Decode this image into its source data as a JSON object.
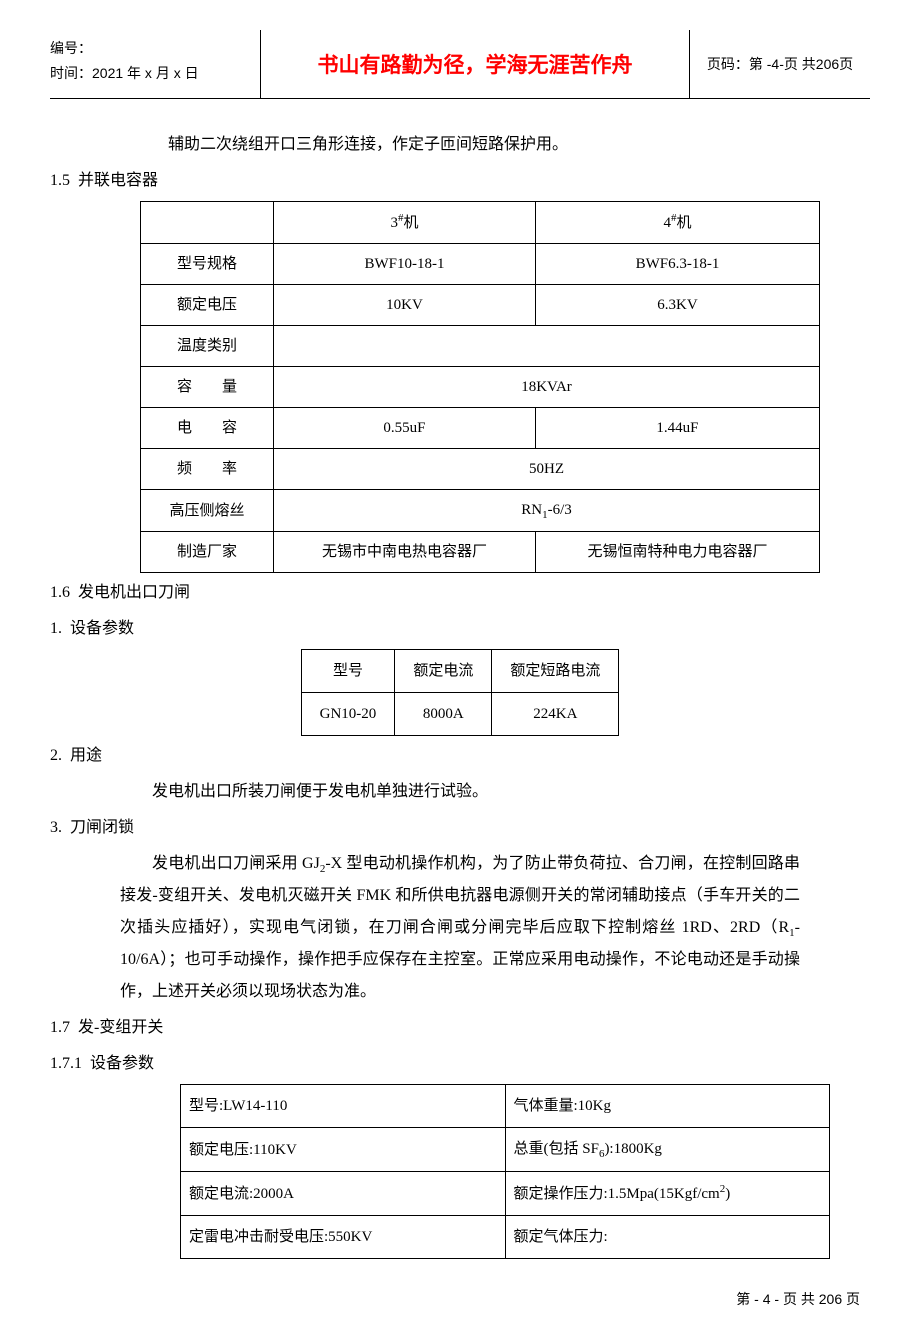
{
  "header": {
    "left_line1": "编号：",
    "left_line2": "时间：2021 年 x 月 x 日",
    "center": "书山有路勤为径，学海无涯苦作舟",
    "right_prefix": "页码：第 -",
    "right_page": "4",
    "right_mid": "-页  共 ",
    "right_total": "206",
    "right_suffix": " 页"
  },
  "intro": "辅助二次绕组开口三角形连接，作定子匝间短路保护用。",
  "s15": {
    "num": "1.5",
    "title": "并联电容器",
    "table": {
      "h1": "3",
      "h1_sup": "#",
      "h1_tail": "机",
      "h2": "4",
      "h2_sup": "#",
      "h2_tail": "机",
      "r1_l": "型号规格",
      "r1_c1": "BWF10-18-1",
      "r1_c2": "BWF6.3-18-1",
      "r2_l": "额定电压",
      "r2_c1": "10KV",
      "r2_c2": "6.3KV",
      "r3_l": "温度类别",
      "r3_c": "",
      "r4_l": "容　　量",
      "r4_c": "18KVAr",
      "r5_l": "电　　容",
      "r5_c1": "0.55uF",
      "r5_c2": "1.44uF",
      "r6_l": "频　　率",
      "r6_c": "50HZ",
      "r7_l": "高压侧熔丝",
      "r7_c_pre": "RN",
      "r7_c_sub": "1",
      "r7_c_post": "-6/3",
      "r8_l": "制造厂家",
      "r8_c1": "无锡市中南电热电容器厂",
      "r8_c2": "无锡恒南特种电力电容器厂"
    }
  },
  "s16": {
    "num": "1.6",
    "title": "发电机出口刀闸",
    "p1_num": "1.",
    "p1_title": "设备参数",
    "table": {
      "h1": "型号",
      "h2": "额定电流",
      "h3": "额定短路电流",
      "r1": "GN10-20",
      "r2": "8000A",
      "r3": "224KA"
    },
    "p2_num": "2.",
    "p2_title": "用途",
    "p2_body": "发电机出口所装刀闸便于发电机单独进行试验。",
    "p3_num": "3.",
    "p3_title": "刀闸闭锁",
    "p3_body_a": "发电机出口刀闸采用 GJ",
    "p3_body_a_sub": "2",
    "p3_body_b": "-X 型电动机操作机构，为了防止带负荷拉、合刀闸，在控制回路串接发-变组开关、发电机灭磁开关 FMK 和所供电抗器电源侧开关的常闭辅助接点（手车开关的二次插头应插好），实现电气闭锁，在刀闸合闸或分闸完毕后应取下控制熔丝 1RD、2RD（R",
    "p3_body_b_sub": "1",
    "p3_body_c": "-10/6A）；也可手动操作，操作把手应保存在主控室。正常应采用电动操作，不论电动还是手动操作，上述开关必须以现场状态为准。"
  },
  "s17": {
    "num": "1.7",
    "title": "发-变组开关",
    "sub_num": "1.7.1",
    "sub_title": "设备参数",
    "table": {
      "r1a": "型号:LW14-110",
      "r1b": "气体重量:10Kg",
      "r2a": "额定电压:110KV",
      "r2b_pre": "总重(包括 SF",
      "r2b_sub": "6",
      "r2b_post": "):1800Kg",
      "r3a": "额定电流:2000A",
      "r3b_pre": "额定操作压力:1.5Mpa(15Kgf/cm",
      "r3b_sup": "2",
      "r3b_post": ")",
      "r4a": "定雷电冲击耐受电压:550KV",
      "r4b": "额定气体压力:"
    }
  },
  "footer": {
    "prefix": "第 - ",
    "page": "4",
    "mid": " -  页 共  ",
    "total": "206",
    "suffix": "  页"
  }
}
